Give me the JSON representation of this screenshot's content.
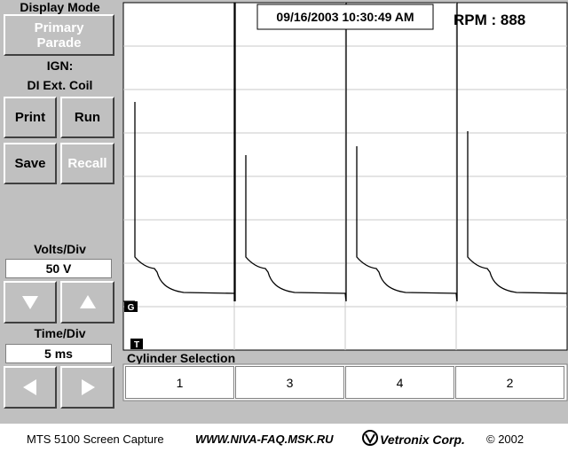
{
  "sidebar": {
    "display_mode_label": "Display Mode",
    "display_mode_button": "Primary Parade",
    "ign_label": "IGN:",
    "ign_value": "DI Ext. Coil",
    "buttons": [
      "Print",
      "Run",
      "Save",
      "Recall"
    ],
    "volts_label": "Volts/Div",
    "volts_value": "50 V",
    "time_label": "Time/Div",
    "time_value": "5 ms"
  },
  "scope": {
    "timestamp": "09/16/2003 10:30:49 AM",
    "rpm": "RPM : 888",
    "ground_marker": "G",
    "trigger_marker": "T"
  },
  "cylinder_selection": {
    "title": "Cylinder Selection",
    "cylinders": [
      "1",
      "3",
      "4",
      "2"
    ]
  },
  "footer": {
    "caption": "MTS 5100 Screen Capture",
    "url": "WWW.NIVA-FAQ.MSK.RU",
    "brand": "Vetronix Corp.",
    "copyright": "© 2002"
  }
}
